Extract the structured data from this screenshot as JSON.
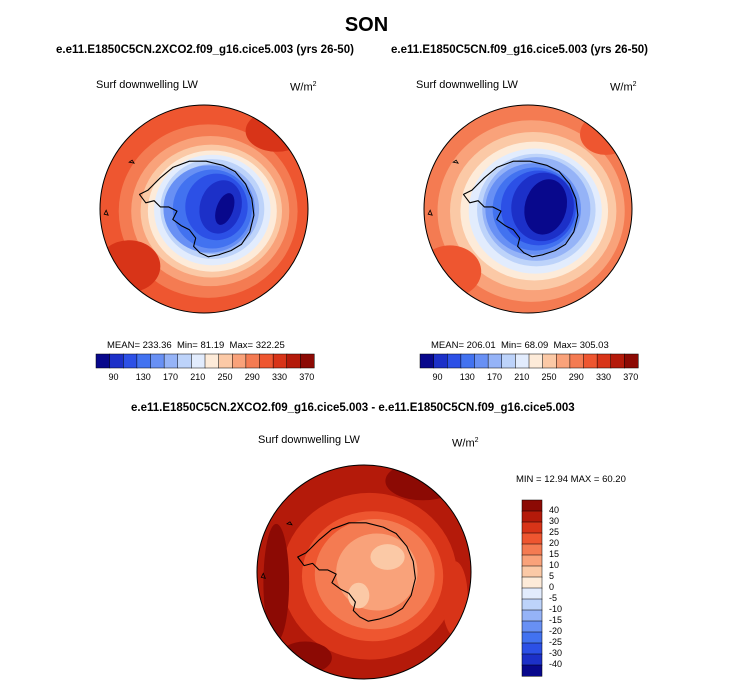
{
  "title": "SON",
  "colors": {
    "blue_scale": [
      "#08088c",
      "#1c30c8",
      "#2c50e6",
      "#4272f0",
      "#6890f4",
      "#95b3f7",
      "#bdd3fa",
      "#e2ecfd"
    ],
    "warm_scale": [
      "#fdebd9",
      "#fbc9a6",
      "#f9a27a",
      "#f47b52",
      "#ee5630",
      "#d83418",
      "#b41a0a",
      "#8c0a04"
    ],
    "land_outline": "#000000"
  },
  "chart_data": [
    {
      "type": "heatmap",
      "projection": "south-polar-stereographic",
      "title": "e.e11.E1850C5CN.2XCO2.f09_g16.cice5.003 (yrs 26-50)",
      "variable": "Surf downwelling LW",
      "units": "W/m",
      "units_exp": "2",
      "mean_label": "MEAN=",
      "mean": "233.36",
      "min_label": "Min=",
      "min": "81.19",
      "max_label": "Max=",
      "max": "322.25",
      "colorbar_orientation": "horizontal",
      "colorbar_ticks": [
        "90",
        "130",
        "170",
        "210",
        "250",
        "290",
        "330",
        "370"
      ],
      "contour_levels": [
        80,
        90,
        100,
        110,
        120,
        130,
        140,
        150,
        160,
        170,
        180,
        190,
        200,
        210,
        220,
        230,
        240,
        250,
        260,
        270,
        280,
        290,
        300,
        310,
        320,
        330,
        340,
        350,
        360,
        370,
        380
      ],
      "field_summary": {
        "interior_antarctica": 95,
        "coastal_antarctica": 170,
        "southern_ocean_edge": 300
      }
    },
    {
      "type": "heatmap",
      "projection": "south-polar-stereographic",
      "title": "e.e11.E1850C5CN.f09_g16.cice5.003 (yrs 26-50)",
      "variable": "Surf downwelling LW",
      "units": "W/m",
      "units_exp": "2",
      "mean_label": "MEAN=",
      "mean": "206.01",
      "min_label": "Min=",
      "min": "68.09",
      "max_label": "Max=",
      "max": "305.03",
      "colorbar_orientation": "horizontal",
      "colorbar_ticks": [
        "90",
        "130",
        "170",
        "210",
        "250",
        "290",
        "330",
        "370"
      ],
      "contour_levels": [
        80,
        90,
        100,
        110,
        120,
        130,
        140,
        150,
        160,
        170,
        180,
        190,
        200,
        210,
        220,
        230,
        240,
        250,
        260,
        270,
        280,
        290,
        300,
        310,
        320,
        330,
        340,
        350,
        360,
        370,
        380
      ],
      "field_summary": {
        "interior_antarctica": 75,
        "coastal_antarctica": 150,
        "southern_ocean_edge": 285
      }
    },
    {
      "type": "heatmap",
      "projection": "south-polar-stereographic",
      "title": "e.e11.E1850C5CN.2XCO2.f09_g16.cice5.003 - e.e11.E1850C5CN.f09_g16.cice5.003",
      "variable": "Surf downwelling LW",
      "units": "W/m",
      "units_exp": "2",
      "min_label": "MIN =",
      "min": "12.94",
      "max_label": "MAX =",
      "max": "60.20",
      "colorbar_orientation": "vertical",
      "colorbar_ticks": [
        "40",
        "30",
        "25",
        "20",
        "15",
        "10",
        "5",
        "0",
        "-5",
        "-10",
        "-15",
        "-20",
        "-25",
        "-30",
        "-40"
      ],
      "field_summary": {
        "antarctica_interior": 15,
        "antarctic_coast": 25,
        "southern_ocean": 35,
        "outer_edge_max": 45
      }
    }
  ]
}
